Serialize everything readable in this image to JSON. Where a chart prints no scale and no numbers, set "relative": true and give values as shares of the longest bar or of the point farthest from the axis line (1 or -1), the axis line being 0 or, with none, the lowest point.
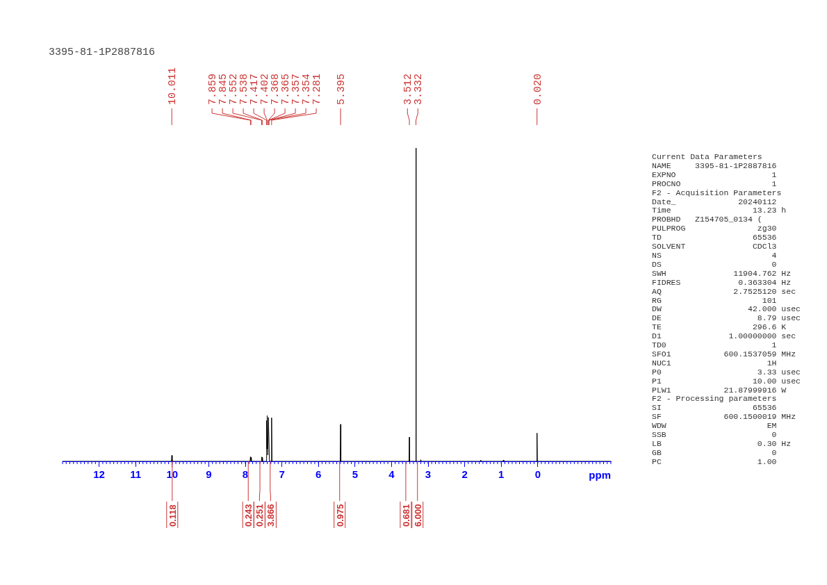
{
  "chart_data": {
    "type": "line",
    "title": "3395-81-1P2887816",
    "xlabel": "ppm",
    "relative": true,
    "xlim": [
      13,
      -2
    ],
    "xticks": [
      12,
      11,
      10,
      9,
      8,
      7,
      6,
      5,
      4,
      3,
      2,
      1,
      0
    ],
    "grid": false,
    "legend": false,
    "marker": "none",
    "line_style": "solid",
    "series": [
      {
        "color": "#000000",
        "x": [
          13,
          10.02,
          10.011,
          10.0,
          7.87,
          7.859,
          7.852,
          7.845,
          7.835,
          7.56,
          7.552,
          7.545,
          7.538,
          7.53,
          7.425,
          7.417,
          7.41,
          7.402,
          7.385,
          7.368,
          7.34,
          7.29,
          7.281,
          7.27,
          5.405,
          5.395,
          5.385,
          3.52,
          3.512,
          3.505,
          3.34,
          3.332,
          3.325,
          3.21,
          3.2,
          3.19,
          1.57,
          1.56,
          1.55,
          0.95,
          0.94,
          0.93,
          0.03,
          0.02,
          0.01,
          -2
        ],
        "values": [
          0,
          0,
          0.019,
          0,
          0,
          0.014,
          0.003,
          0.012,
          0,
          0,
          0.014,
          0.003,
          0.012,
          0,
          0,
          0.13,
          0.04,
          0.146,
          0.02,
          0.14,
          0,
          0,
          0.139,
          0,
          0,
          0.118,
          0,
          0,
          0.077,
          0,
          0,
          1,
          0,
          0,
          0.005,
          0,
          0,
          0.004,
          0,
          0,
          0.004,
          0,
          0,
          0.09,
          0,
          0
        ]
      }
    ],
    "annotations": [
      {
        "text": "10.011",
        "x": 10.011
      },
      {
        "text": "7.859",
        "x": 7.859
      },
      {
        "text": "7.845",
        "x": 7.845
      },
      {
        "text": "7.552",
        "x": 7.552
      },
      {
        "text": "7.538",
        "x": 7.538
      },
      {
        "text": "7.417",
        "x": 7.417
      },
      {
        "text": "7.402",
        "x": 7.402
      },
      {
        "text": "7.368",
        "x": 7.368
      },
      {
        "text": "7.365",
        "x": 7.365
      },
      {
        "text": "7.357",
        "x": 7.357
      },
      {
        "text": "7.354",
        "x": 7.354
      },
      {
        "text": "7.281",
        "x": 7.281
      },
      {
        "text": "5.395",
        "x": 5.395
      },
      {
        "text": "3.512",
        "x": 3.512
      },
      {
        "text": "3.332",
        "x": 3.332
      },
      {
        "text": "0.020",
        "x": 0.02
      },
      {
        "text": "0.118",
        "x": 10.0,
        "y": 0
      },
      {
        "text": "0.243",
        "x": 7.92,
        "y": 0
      },
      {
        "text": "0.251",
        "x": 7.6,
        "y": 0
      },
      {
        "text": "3.866",
        "x": 7.32,
        "y": 0
      },
      {
        "text": "0.975",
        "x": 5.42,
        "y": 0
      },
      {
        "text": "0.681",
        "x": 3.61,
        "y": 0
      },
      {
        "text": "6.000",
        "x": 3.29,
        "y": 0
      },
      "Current Data Parameters",
      "NAME     3395-81-1P2887816",
      "EXPNO                    1",
      "PROCNO                   1",
      "F2 - Acquisition Parameters",
      "Date_             20240112",
      "Time                 13.23 h",
      "PROBHD   Z154705_0134 (",
      "PULPROG               zg30",
      "TD                   65536",
      "SOLVENT              CDCl3",
      "NS                       4",
      "DS                       0",
      "SWH              11904.762 Hz",
      "FIDRES            0.363304 Hz",
      "AQ               2.7525120 sec",
      "RG                     101",
      "DW                  42.000 usec",
      "DE                    8.79 usec",
      "TE                   296.6 K",
      "D1              1.00000000 sec",
      "TD0                      1",
      "SFO1           600.1537059 MHz",
      "NUC1                    1H",
      "P0                    3.33 usec",
      "P1                   10.00 usec",
      "PLW1           21.87999916 W",
      "F2 - Processing parameters",
      "SI                   65536",
      "SF             600.1500019 MHz",
      "WDW                     EM",
      "SSB                      0",
      "LB                    0.30 Hz",
      "GB                       0",
      "PC                    1.00"
    ]
  }
}
